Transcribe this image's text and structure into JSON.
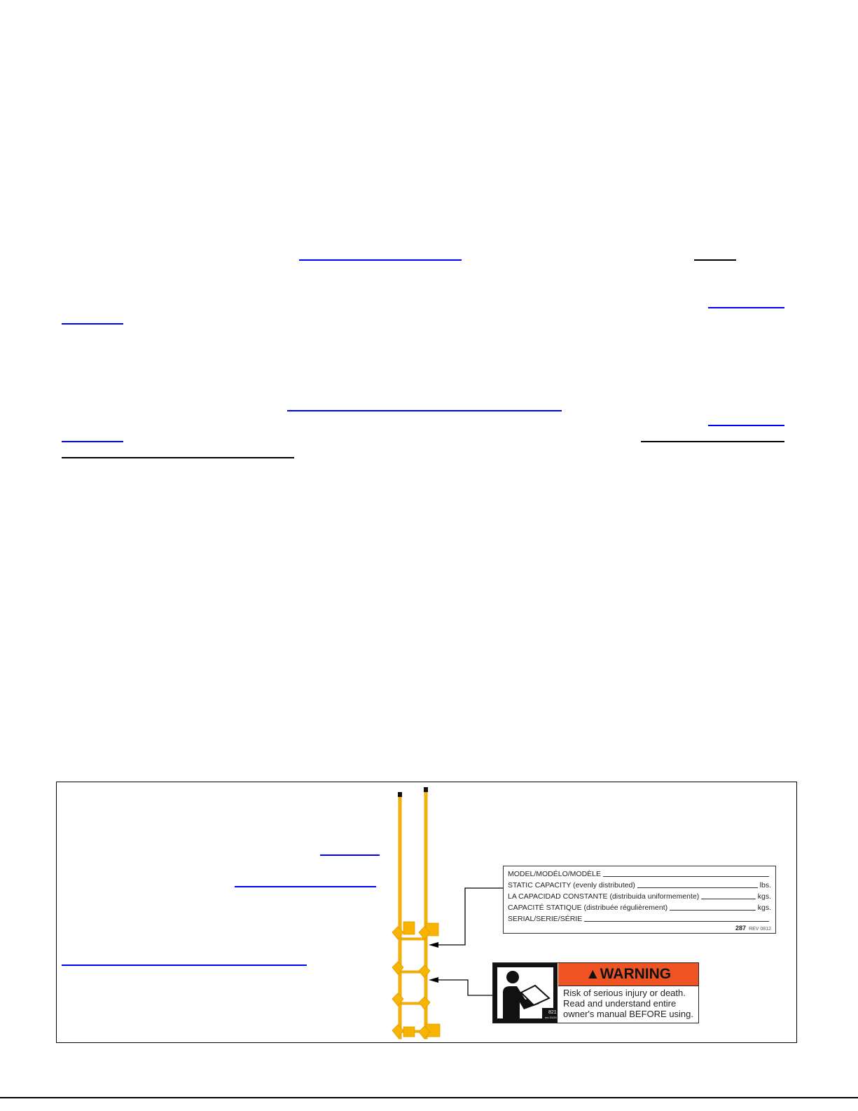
{
  "capacity_label": {
    "rows": [
      "MODEL/MODÉLO/MODÈLE",
      "STATIC CAPACITY (evenly distributed)",
      "LA CAPACIDAD CONSTANTE (distribuida uniformemente)",
      "CAPACITÉ STATIQUE (distribuée régulièrement)",
      "SERIAL/SERIE/SÉRIE"
    ],
    "units": [
      "",
      "lbs.",
      "kgs.",
      "kgs.",
      ""
    ],
    "code": "287",
    "rev": "REV 0812"
  },
  "warning_label": {
    "title": "WARNING",
    "lines": [
      "Risk of serious injury or death.",
      "Read and understand entire",
      "owner's manual BEFORE using."
    ],
    "code": "821",
    "rev": "rev 01/20",
    "header_color": "#ef5323"
  },
  "colors": {
    "link": "#0000ff",
    "ladder": "#f7b500"
  }
}
